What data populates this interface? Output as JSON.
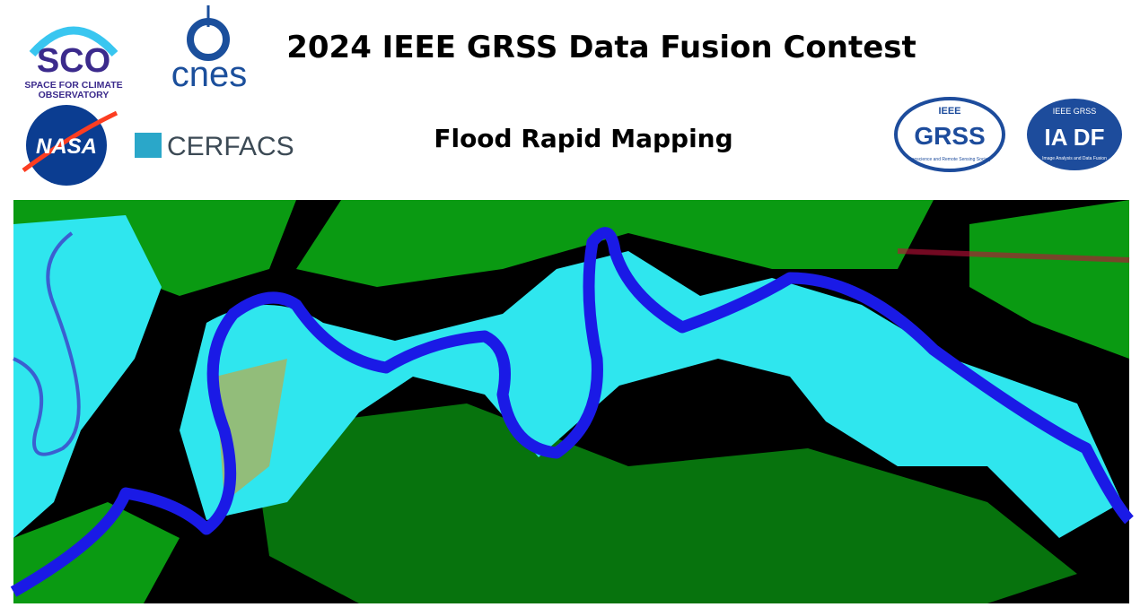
{
  "header": {
    "title": "2024 IEEE GRSS Data Fusion Contest",
    "subtitle": "Flood Rapid Mapping"
  },
  "logos": {
    "sco": {
      "name": "SCO",
      "line1": "SPACE FOR CLIMATE",
      "line2": "OBSERVATORY"
    },
    "cnes": "cnes",
    "nasa": "NASA",
    "cerfacs": "CERFACS",
    "grss": {
      "top": "IEEE",
      "name": "GRSS",
      "bottom": "Geoscience and Remote Sensing Society"
    },
    "iadf": {
      "top": "IEEE GRSS",
      "name": "IA DF",
      "bottom": "Image Analysis and Data Fusion"
    }
  }
}
